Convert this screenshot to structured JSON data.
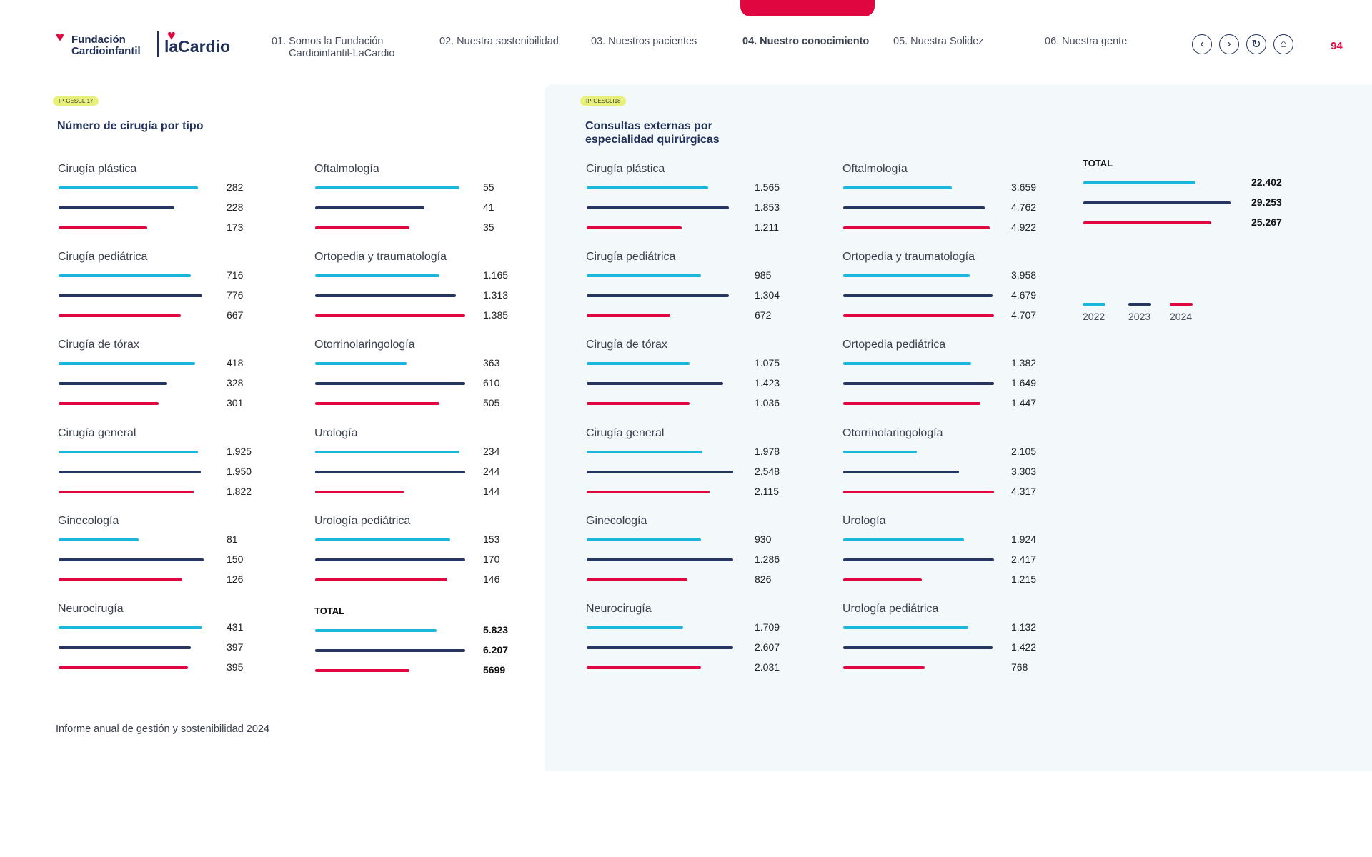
{
  "colors": {
    "y2022": "#1ab6dc",
    "y2023": "#273561",
    "y2024": "#e0063f",
    "accent": "#e0063f"
  },
  "logo": {
    "brand1": "Fundación",
    "brand2": "Cardioinfantil",
    "brand3": "laCardio"
  },
  "nav": [
    "01. Somos la Fundación\n      Cardioinfantil-LaCardio",
    "02. Nuestra sostenibilidad",
    "03. Nuestros pacientes",
    "04. Nuestro conocimiento",
    "05. Nuestra Solidez",
    "06. Nuestra gente"
  ],
  "page_number": "94",
  "left": {
    "tag": "IP-GESCLI17",
    "title": "Número de cirugía por tipo",
    "groups": [
      {
        "title": "Cirugía plástica",
        "values": [
          "282",
          "228",
          "173"
        ],
        "fill": [
          0.96,
          0.8,
          0.61
        ]
      },
      {
        "title": "Cirugía pediátrica",
        "values": [
          "716",
          "776",
          "667"
        ],
        "fill": [
          0.91,
          0.99,
          0.84
        ]
      },
      {
        "title": "Cirugía de tórax",
        "values": [
          "418",
          "328",
          "301"
        ],
        "fill": [
          0.94,
          0.75,
          0.69
        ]
      },
      {
        "title": "Cirugía general",
        "values": [
          "1.925",
          "1.950",
          "1.822"
        ],
        "fill": [
          0.96,
          0.98,
          0.93
        ]
      },
      {
        "title": "Ginecología",
        "values": [
          "81",
          "150",
          "126"
        ],
        "fill": [
          0.55,
          1.0,
          0.85
        ]
      },
      {
        "title": "Neurocirugía",
        "values": [
          "431",
          "397",
          "395"
        ],
        "fill": [
          0.99,
          0.91,
          0.89
        ]
      },
      {
        "title": "Oftalmología",
        "values": [
          "55",
          "41",
          "35"
        ],
        "fill": [
          0.96,
          0.73,
          0.63
        ]
      },
      {
        "title": "Ortopedia y traumatología",
        "values": [
          "1.165",
          "1.313",
          "1.385"
        ],
        "fill": [
          0.83,
          0.94,
          1.0
        ]
      },
      {
        "title": "Otorrinolaringología",
        "values": [
          "363",
          "610",
          "505"
        ],
        "fill": [
          0.61,
          1.0,
          0.83
        ]
      },
      {
        "title": "Urología",
        "values": [
          "234",
          "244",
          "144"
        ],
        "fill": [
          0.96,
          1.0,
          0.59
        ]
      },
      {
        "title": "Urología pediátrica",
        "values": [
          "153",
          "170",
          "146"
        ],
        "fill": [
          0.9,
          1.0,
          0.88
        ]
      },
      {
        "title": "TOTAL",
        "values": [
          "5.823",
          "6.207",
          "5699"
        ],
        "fill": [
          0.81,
          1.0,
          0.63
        ]
      }
    ]
  },
  "right": {
    "tag": "IP-GESCLI18",
    "title": "Consultas externas por\nespecialidad quirúrgicas",
    "groups": [
      {
        "title": "Cirugía plástica",
        "values": [
          "1.565",
          "1.853",
          "1.211"
        ],
        "fill": [
          0.83,
          0.97,
          0.65
        ]
      },
      {
        "title": "Cirugía pediátrica",
        "values": [
          "985",
          "1.304",
          "672"
        ],
        "fill": [
          0.78,
          0.97,
          0.57
        ]
      },
      {
        "title": "Cirugía de tórax",
        "values": [
          "1.075",
          "1.423",
          "1.036"
        ],
        "fill": [
          0.7,
          0.93,
          0.7
        ]
      },
      {
        "title": "Cirugía general",
        "values": [
          "1.978",
          "2.548",
          "2.115"
        ],
        "fill": [
          0.79,
          1.0,
          0.84
        ]
      },
      {
        "title": "Ginecología",
        "values": [
          "930",
          "1.286",
          "826"
        ],
        "fill": [
          0.78,
          1.0,
          0.69
        ]
      },
      {
        "title": "Neurocirugía",
        "values": [
          "1.709",
          "2.607",
          "2.031"
        ],
        "fill": [
          0.66,
          1.0,
          0.78
        ]
      },
      {
        "title": "Oftalmología",
        "values": [
          "3.659",
          "4.762",
          "4.922"
        ],
        "fill": [
          0.72,
          0.94,
          0.97
        ]
      },
      {
        "title": "Ortopedia y traumatología",
        "values": [
          "3.958",
          "4.679",
          "4.707"
        ],
        "fill": [
          0.84,
          0.99,
          1.0
        ]
      },
      {
        "title": "Ortopedia pediátrica",
        "values": [
          "1.382",
          "1.649",
          "1.447"
        ],
        "fill": [
          0.85,
          1.0,
          0.91
        ]
      },
      {
        "title": "Otorrinolaringología",
        "values": [
          "2.105",
          "3.303",
          "4.317"
        ],
        "fill": [
          0.49,
          0.77,
          1.0
        ]
      },
      {
        "title": "Urología",
        "values": [
          "1.924",
          "2.417",
          "1.215"
        ],
        "fill": [
          0.8,
          1.0,
          0.52
        ]
      },
      {
        "title": "Urología pediátrica",
        "values": [
          "1.132",
          "1.422",
          "768"
        ],
        "fill": [
          0.83,
          0.99,
          0.54
        ]
      },
      {
        "title": "TOTAL",
        "values": [
          "22.402",
          "29.253",
          "25.267"
        ],
        "fill": [
          0.76,
          1.0,
          0.87
        ]
      }
    ]
  },
  "legend": [
    "2022",
    "2023",
    "2024"
  ],
  "footer": "Informe anual de gestión y sostenibilidad 2024"
}
